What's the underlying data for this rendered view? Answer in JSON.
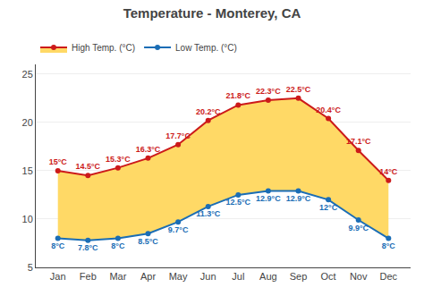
{
  "chart_data": {
    "type": "line",
    "title": "Temperature - Monterey, CA",
    "categories": [
      "Jan",
      "Feb",
      "Mar",
      "Apr",
      "May",
      "Jun",
      "Jul",
      "Aug",
      "Sep",
      "Oct",
      "Nov",
      "Dec"
    ],
    "series": [
      {
        "name": "Low Temp. (°C)",
        "color": "#1a6db5",
        "values": [
          8.0,
          7.8,
          8.0,
          8.5,
          9.7,
          11.3,
          12.5,
          12.9,
          12.9,
          12.0,
          9.9,
          8.0
        ],
        "value_labels": [
          "8°C",
          "7.8°C",
          "8°C",
          "8.5°C",
          "9.7°C",
          "11.3°C",
          "12.5°C",
          "12.9°C",
          "12.9°C",
          "12°C",
          "9.9°C",
          "8°C"
        ]
      },
      {
        "name": "High Temp. (°C)",
        "color": "#cc1a1a",
        "values": [
          15.0,
          14.5,
          15.3,
          16.3,
          17.7,
          20.2,
          21.8,
          22.3,
          22.5,
          20.4,
          17.1,
          14.0
        ],
        "value_labels": [
          "15°C",
          "14.5°C",
          "15.3°C",
          "16.3°C",
          "17.7°C",
          "20.2°C",
          "21.8°C",
          "22.3°C",
          "22.5°C",
          "20.4°C",
          "17.1°C",
          "14°C"
        ]
      }
    ],
    "color": "#ffd966",
    "marker": "circle",
    "data_labels": true,
    "ylim": [
      5,
      26
    ],
    "yticks": [
      5,
      10,
      15,
      20,
      25
    ],
    "grid": true,
    "legend": "upper left"
  }
}
